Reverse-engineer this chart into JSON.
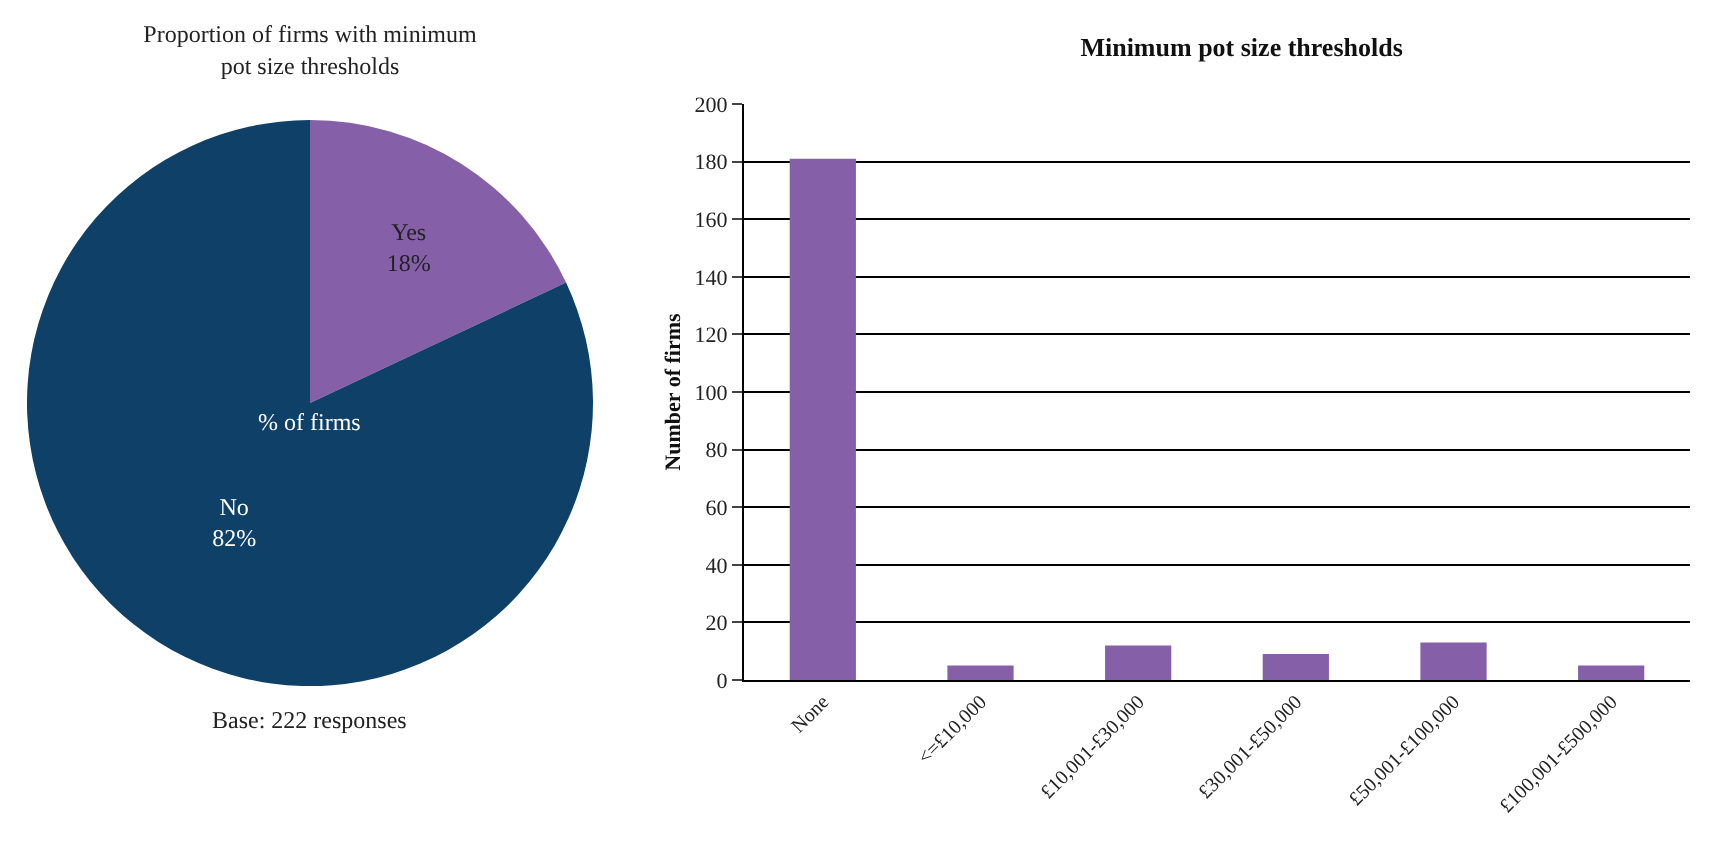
{
  "chart_data": [
    {
      "type": "pie",
      "title": "Proportion of firms with minimum\npot size thresholds",
      "categories": [
        "Yes",
        "No"
      ],
      "values": [
        18,
        82
      ],
      "colors": [
        "#8560a8",
        "#0e4068"
      ],
      "value_labels": [
        "18%",
        "82%"
      ],
      "annotations": [
        "% of firms",
        "Base: 222 responses"
      ],
      "legend": false
    },
    {
      "type": "bar",
      "title": "Minimum pot size thresholds",
      "ylabel": "Number of firms",
      "categories": [
        "None",
        "<=£10,000",
        "£10,001-£30,000",
        "£30,001-£50,000",
        "£50,001-£100,000",
        "£100,001-£500,000"
      ],
      "values": [
        181,
        5,
        12,
        9,
        13,
        5
      ],
      "color": "#8560a8",
      "ylim": [
        0,
        200
      ],
      "yticks": [
        0,
        20,
        40,
        60,
        80,
        100,
        120,
        140,
        160,
        180,
        200
      ],
      "grid": "y",
      "legend": false
    }
  ]
}
